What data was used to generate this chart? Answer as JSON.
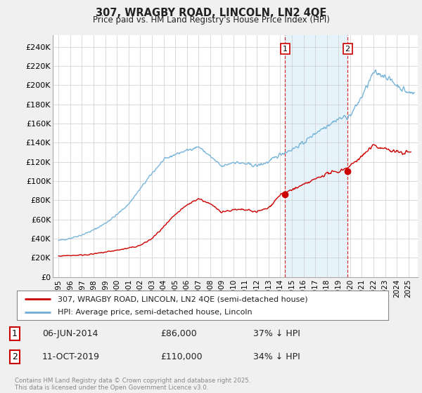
{
  "title": "307, WRAGBY ROAD, LINCOLN, LN2 4QE",
  "subtitle": "Price paid vs. HM Land Registry's House Price Index (HPI)",
  "ylabel_ticks": [
    "£0",
    "£20K",
    "£40K",
    "£60K",
    "£80K",
    "£100K",
    "£120K",
    "£140K",
    "£160K",
    "£180K",
    "£200K",
    "£220K",
    "£240K"
  ],
  "ytick_values": [
    0,
    20000,
    40000,
    60000,
    80000,
    100000,
    120000,
    140000,
    160000,
    180000,
    200000,
    220000,
    240000
  ],
  "ylim": [
    0,
    252000
  ],
  "xlim_start": 1994.5,
  "xlim_end": 2025.8,
  "xticks": [
    1995,
    1996,
    1997,
    1998,
    1999,
    2000,
    2001,
    2002,
    2003,
    2004,
    2005,
    2006,
    2007,
    2008,
    2009,
    2010,
    2011,
    2012,
    2013,
    2014,
    2015,
    2016,
    2017,
    2018,
    2019,
    2020,
    2021,
    2022,
    2023,
    2024,
    2025
  ],
  "hpi_color": "#6baed6",
  "price_color": "#cc0000",
  "marker1_x": 2014.43,
  "marker1_y": 86000,
  "marker2_x": 2019.78,
  "marker2_y": 110000,
  "shaded_xmin": 2014.43,
  "shaded_xmax": 2019.78,
  "legend_line1": "307, WRAGBY ROAD, LINCOLN, LN2 4QE (semi-detached house)",
  "legend_line2": "HPI: Average price, semi-detached house, Lincoln",
  "copyright_text": "Contains HM Land Registry data © Crown copyright and database right 2025.\nThis data is licensed under the Open Government Licence v3.0.",
  "background_color": "#f0f0f0",
  "plot_bg_color": "#ffffff",
  "hpi_years": [
    1995,
    1996,
    1997,
    1998,
    1999,
    2000,
    2001,
    2002,
    2003,
    2004,
    2005,
    2006,
    2007,
    2008,
    2009,
    2010,
    2011,
    2012,
    2013,
    2014,
    2015,
    2016,
    2017,
    2018,
    2019,
    2020,
    2021,
    2022,
    2023,
    2024,
    2025
  ],
  "hpi_vals": [
    38000,
    40500,
    44000,
    49000,
    56000,
    65000,
    76000,
    92000,
    108000,
    122000,
    128000,
    132000,
    136000,
    126000,
    115000,
    120000,
    118000,
    116000,
    120000,
    128000,
    133000,
    140000,
    150000,
    158000,
    165000,
    168000,
    188000,
    213000,
    210000,
    200000,
    192000
  ],
  "price_years": [
    1995,
    1996,
    1997,
    1998,
    1999,
    2000,
    2001,
    2002,
    2003,
    2004,
    2005,
    2006,
    2007,
    2008,
    2009,
    2010,
    2011,
    2012,
    2013,
    2014,
    2015,
    2016,
    2017,
    2018,
    2019,
    2020,
    2021,
    2022,
    2023,
    2024,
    2025
  ],
  "price_vals": [
    22000,
    22500,
    23000,
    24000,
    26000,
    28000,
    30000,
    33000,
    40000,
    52000,
    65000,
    75000,
    82000,
    76000,
    68000,
    70000,
    70000,
    68000,
    72000,
    86000,
    91000,
    96000,
    102000,
    108000,
    110000,
    116000,
    126000,
    137000,
    134000,
    130000,
    130000
  ]
}
